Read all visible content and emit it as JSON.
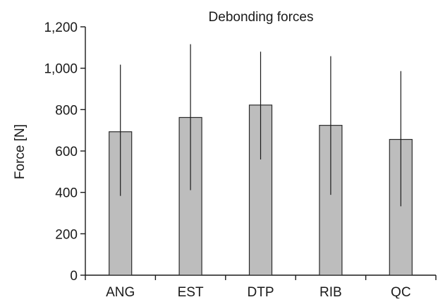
{
  "chart_data": {
    "type": "bar",
    "title": "Debonding forces",
    "xlabel": "",
    "ylabel": "Force [N]",
    "categories": [
      "ANG",
      "EST",
      "DTP",
      "RIB",
      "QC"
    ],
    "values": [
      693,
      762,
      822,
      724,
      656
    ],
    "error_low": [
      383,
      411,
      559,
      388,
      333
    ],
    "error_high": [
      1017,
      1116,
      1080,
      1058,
      986
    ],
    "ylim": [
      0,
      1200
    ],
    "yticks": [
      0,
      200,
      400,
      600,
      800,
      1000,
      1200
    ],
    "ytick_labels": [
      "0",
      "200",
      "400",
      "600",
      "800",
      "1,000",
      "1,200"
    ],
    "grid": false,
    "bar_color": "#bdbdbd",
    "edge_color": "#2b2b2b"
  }
}
